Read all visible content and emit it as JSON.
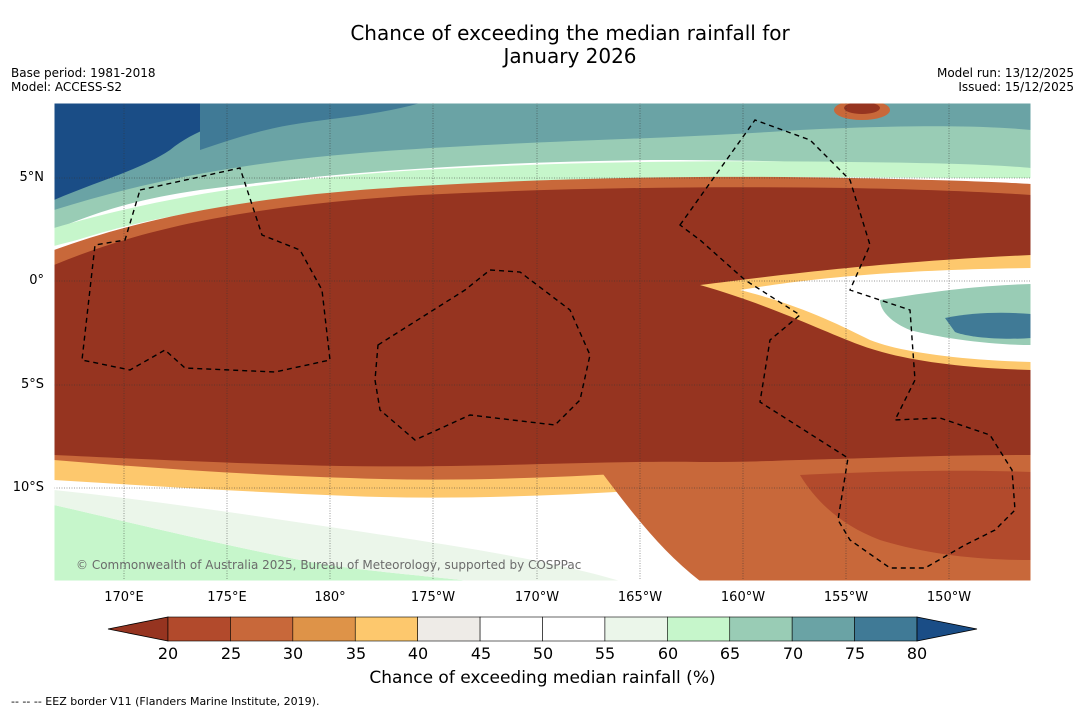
{
  "title_line1": "Chance of exceeding the median rainfall for",
  "title_line2": "January 2026",
  "base_period": "Base period: 1981-2018",
  "model": "Model: ACCESS-S2",
  "model_run": "Model run: 13/12/2025",
  "issued": "Issued: 15/12/2025",
  "lat_labels": [
    "5°N",
    "0°",
    "5°S",
    "10°S"
  ],
  "lon_labels": [
    "170°E",
    "175°E",
    "180°",
    "175°W",
    "170°W",
    "165°W",
    "160°W",
    "155°W",
    "150°W"
  ],
  "credit": "© Commonwealth of Australia 2025, Bureau of Meteorology, supported by COSPPac",
  "colorbar": {
    "title": "Chance of exceeding median rainfall (%)",
    "ticks": [
      "20",
      "25",
      "30",
      "35",
      "40",
      "45",
      "50",
      "55",
      "60",
      "65",
      "70",
      "75",
      "80"
    ],
    "colors": [
      "#963420",
      "#b24a2c",
      "#c8683a",
      "#de9348",
      "#fdc86d",
      "#eeebe7",
      "#ffffff",
      "#ffffff",
      "#ebf6ea",
      "#c6f6cb",
      "#99ccb5",
      "#6aa3a5",
      "#407a96",
      "#1a4d86"
    ]
  },
  "legend": "-- -- -- EEZ border V11 (Flanders Marine Institute, 2019)."
}
